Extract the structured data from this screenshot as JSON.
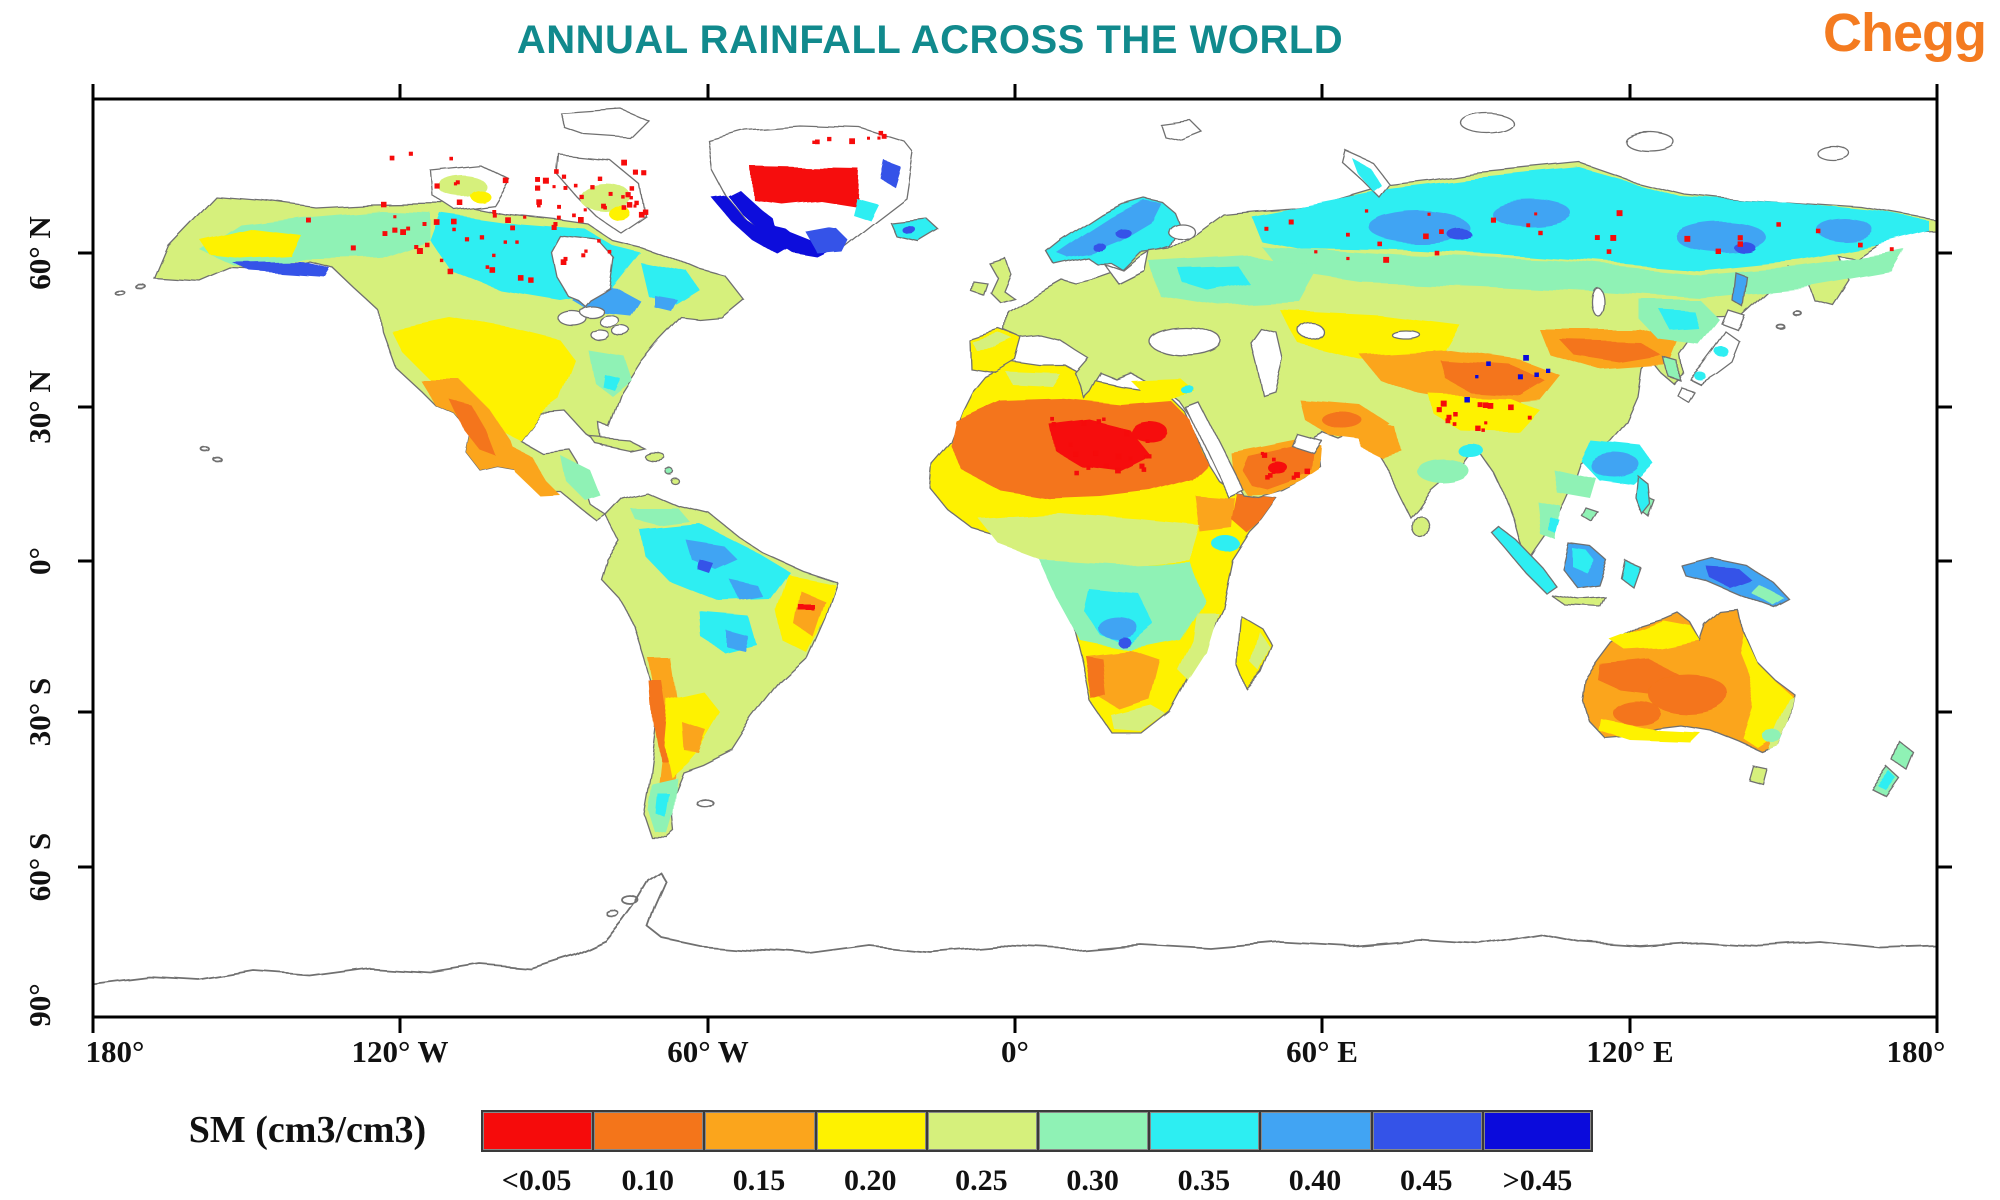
{
  "header": {
    "title": "ANNUAL RAINFALL ACROSS THE WORLD",
    "title_color": "#118a8d",
    "brand": "Chegg",
    "brand_color": "#f47b20"
  },
  "axes": {
    "x_ticks": [
      "180°",
      "120° W",
      "60° W",
      "0°",
      "60° E",
      "120° E",
      "180°"
    ],
    "y_ticks": [
      "60° N",
      "30° N",
      "0°",
      "30° S",
      "60° S",
      "90°"
    ]
  },
  "legend": {
    "label": "SM (cm3/cm3)",
    "bins": [
      {
        "label": "<0.05",
        "color": "#f60b0b"
      },
      {
        "label": "0.10",
        "color": "#f4751a"
      },
      {
        "label": "0.15",
        "color": "#fba51c"
      },
      {
        "label": "0.20",
        "color": "#fef200"
      },
      {
        "label": "0.25",
        "color": "#d6f07c"
      },
      {
        "label": "0.30",
        "color": "#8ff2b5"
      },
      {
        "label": "0.35",
        "color": "#2deef2"
      },
      {
        "label": "0.40",
        "color": "#41a4f3"
      },
      {
        "label": "0.45",
        "color": "#3453e8"
      },
      {
        "label": ">0.45",
        "color": "#0b0bdc"
      }
    ]
  },
  "chart_data": {
    "type": "heatmap",
    "title": "ANNUAL RAINFALL ACROSS THE WORLD",
    "variable": "SM (cm3/cm3)",
    "projection": "equirectangular world map",
    "lon_range": [
      -180,
      180
    ],
    "lat_range": [
      -90,
      90
    ],
    "x_tick_labels": [
      "180°",
      "120° W",
      "60° W",
      "0°",
      "60° E",
      "120° E",
      "180°"
    ],
    "y_tick_labels": [
      "60° N",
      "30° N",
      "0°",
      "30° S",
      "60° S",
      "90°"
    ],
    "color_bins": [
      "<0.05",
      "0.10",
      "0.15",
      "0.20",
      "0.25",
      "0.30",
      "0.35",
      "0.40",
      "0.45",
      ">0.45"
    ],
    "legend_position": "bottom",
    "grid": false,
    "region_values": [
      {
        "region": "Sahara Desert core and Arabian Peninsula",
        "sm": "<0.05-0.10 (red/dark orange)"
      },
      {
        "region": "Sahel, Mediterranean coast of Africa",
        "sm": "0.15-0.20 (amber/yellow)"
      },
      {
        "region": "Southwest USA and northern Mexico",
        "sm": "0.10-0.20 (orange/yellow)"
      },
      {
        "region": "Central US plains",
        "sm": "0.20 (yellow)"
      },
      {
        "region": "Eastern USA and boreal Canada",
        "sm": "0.25-0.35 (green/cyan)"
      },
      {
        "region": "Northern Canada, Hudson Bay fringe, Labrador",
        "sm": "0.35-0.45 (cyan/blue) with <0.05 speckles"
      },
      {
        "region": "Greenland margins",
        "sm": "0.45->0.45 (blue) with <0.05 band, interior no data"
      },
      {
        "region": "Amazon basin",
        "sm": "0.30-0.40 (green/cyan/blue)"
      },
      {
        "region": "Northeast Brazil",
        "sm": "0.10-0.20 with <0.05 spot"
      },
      {
        "region": "Atacama / Andes west coast",
        "sm": "0.10-0.15 (orange)"
      },
      {
        "region": "Argentina",
        "sm": "0.15-0.20 (amber/yellow)"
      },
      {
        "region": "Congo basin",
        "sm": "0.30-0.40 (mint/cyan)"
      },
      {
        "region": "Kalahari / Horn of Africa",
        "sm": "0.10-0.15 (orange)"
      },
      {
        "region": "Europe",
        "sm": "0.20-0.30 (yellow-green/green)"
      },
      {
        "region": "Scandinavia",
        "sm": "0.35-0.45 (cyan/blue)"
      },
      {
        "region": "Northern Siberia belt",
        "sm": "0.35-0.45 (cyan/blue)"
      },
      {
        "region": "Kazakhstan steppe",
        "sm": "0.20 (yellow)"
      },
      {
        "region": "Central Asia deserts, Mongolia, Gobi",
        "sm": "0.10-0.15 (orange/amber)"
      },
      {
        "region": "Tibetan Plateau",
        "sm": "0.20 (yellow) with <0.05 speckles"
      },
      {
        "region": "Southeast China",
        "sm": "0.35-0.40 (cyan/blue)"
      },
      {
        "region": "India",
        "sm": "0.15-0.25 (yellow, orange NW, green E)"
      },
      {
        "region": "Indonesia / Borneo / New Guinea",
        "sm": "0.35-0.45 (cyan/blue)"
      },
      {
        "region": "Australia interior",
        "sm": "0.10-0.15 (orange/amber), 0.20 fringes"
      },
      {
        "region": "New Zealand, Tasmania",
        "sm": "0.25-0.35 (green/cyan)"
      },
      {
        "region": "Antarctica",
        "sm": "no data (coastline outline only)"
      }
    ]
  }
}
